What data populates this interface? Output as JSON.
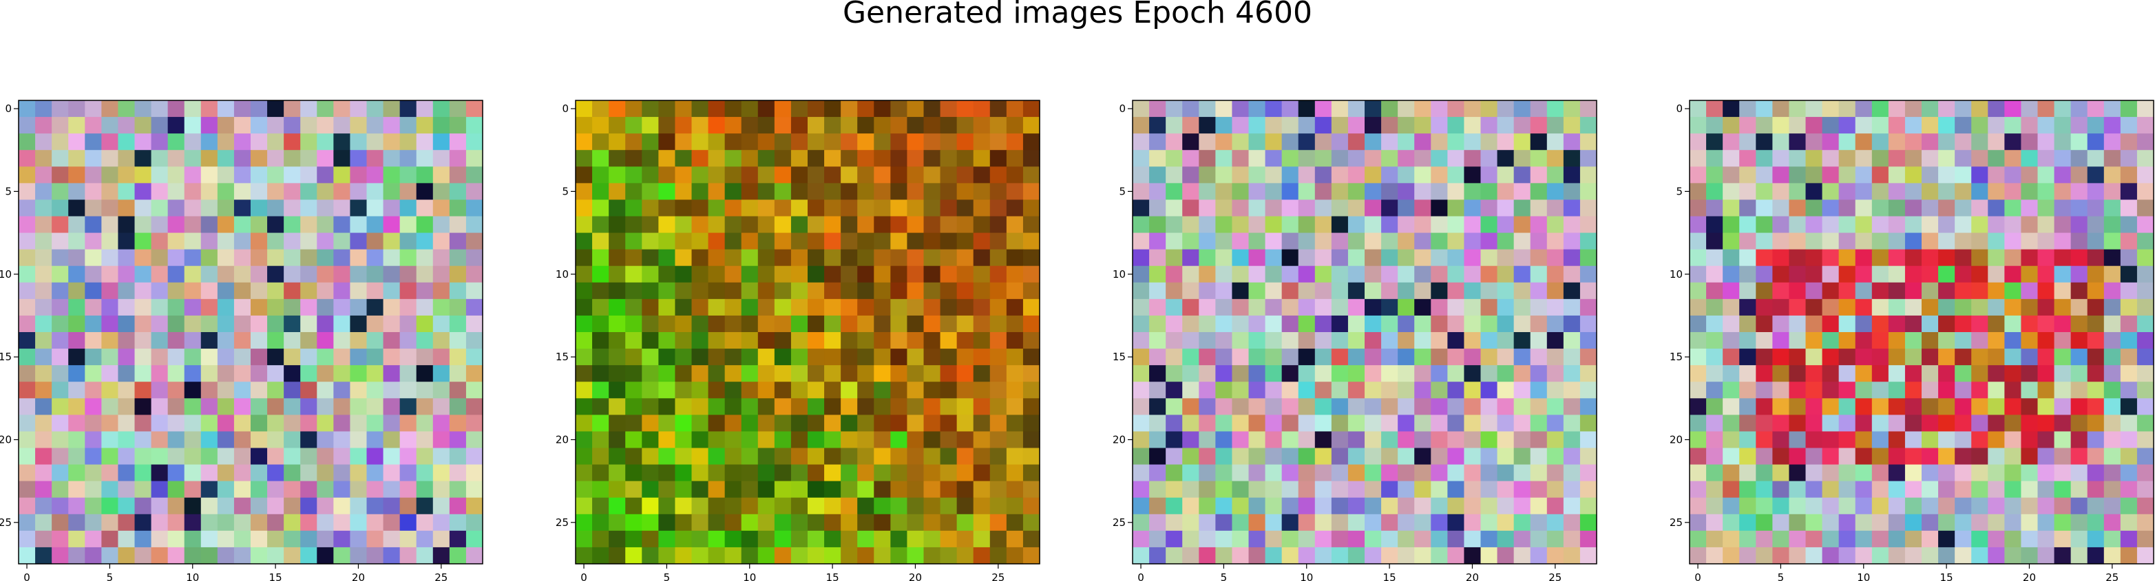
{
  "figure": {
    "title": "Generated images Epoch 4600"
  },
  "panels": [
    {
      "name": "generated-image-1",
      "palette": "pastel",
      "x_ticks": [
        "0",
        "5",
        "10",
        "15",
        "20",
        "25"
      ],
      "y_ticks": [
        "0",
        "5",
        "10",
        "15",
        "20",
        "25"
      ]
    },
    {
      "name": "generated-image-2",
      "palette": "autumn",
      "x_ticks": [
        "0",
        "5",
        "10",
        "15",
        "20",
        "25"
      ],
      "y_ticks": [
        "0",
        "5",
        "10",
        "15",
        "20",
        "25"
      ]
    },
    {
      "name": "generated-image-3",
      "palette": "pastel",
      "x_ticks": [
        "0",
        "5",
        "10",
        "15",
        "20",
        "25"
      ],
      "y_ticks": [
        "0",
        "5",
        "10",
        "15",
        "20",
        "25"
      ]
    },
    {
      "name": "generated-image-4",
      "palette": "pastel-red",
      "x_ticks": [
        "0",
        "5",
        "10",
        "15",
        "20",
        "25"
      ],
      "y_ticks": [
        "0",
        "5",
        "10",
        "15",
        "20",
        "25"
      ]
    }
  ],
  "image_grid": {
    "rows": 28,
    "cols": 28
  }
}
